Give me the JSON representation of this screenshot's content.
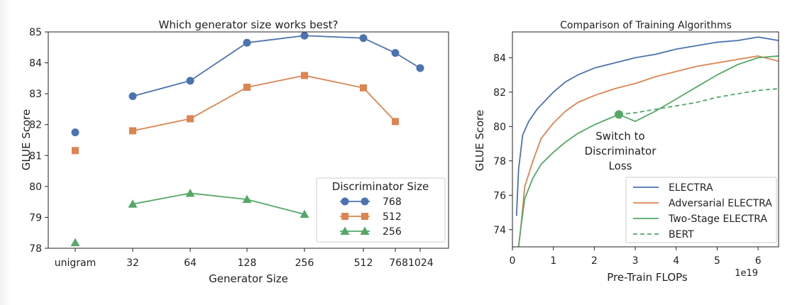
{
  "chart_data": [
    {
      "type": "line",
      "title": "Which generator size works best?",
      "xlabel": "Generator Size",
      "ylabel": "GLUE Score",
      "categories": [
        "unigram",
        "32",
        "64",
        "128",
        "256",
        "512",
        "768",
        "1024"
      ],
      "ylim": [
        78,
        85
      ],
      "yticks": [
        78,
        79,
        80,
        81,
        82,
        83,
        84,
        85
      ],
      "grid": false,
      "legend": {
        "title": "Discriminator Size",
        "placement": "lower-right"
      },
      "series": [
        {
          "name": "768",
          "color": "#4c72b0",
          "marker": "circle",
          "unigram": 81.75,
          "x": [
            "32",
            "64",
            "128",
            "256",
            "512",
            "768",
            "1024"
          ],
          "values": [
            82.92,
            83.42,
            84.65,
            84.88,
            84.8,
            84.32,
            83.83
          ]
        },
        {
          "name": "512",
          "color": "#dd8452",
          "marker": "square",
          "unigram": 81.16,
          "x": [
            "32",
            "64",
            "128",
            "256",
            "512",
            "768"
          ],
          "values": [
            81.8,
            82.19,
            83.21,
            83.59,
            83.19,
            82.1
          ]
        },
        {
          "name": "256",
          "color": "#55a868",
          "marker": "triangle",
          "unigram": 78.18,
          "x": [
            "32",
            "64",
            "128",
            "256"
          ],
          "values": [
            79.43,
            79.78,
            79.58,
            79.1
          ]
        }
      ]
    },
    {
      "type": "line",
      "title": "Comparison of Training Algorithms",
      "xlabel": "Pre-Train FLOPs",
      "ylabel": "GLUE Score",
      "x_multiplier_label": "1e19",
      "xlim": [
        0,
        6.5
      ],
      "ylim": [
        73,
        85.5
      ],
      "xticks": [
        0,
        1,
        2,
        3,
        4,
        5,
        6
      ],
      "yticks": [
        74,
        76,
        78,
        80,
        82,
        84
      ],
      "grid": false,
      "legend": {
        "placement": "lower-right"
      },
      "annotation": {
        "text": "Switch to Discriminator Loss",
        "lines": [
          "Switch to",
          "Discriminator",
          "Loss"
        ],
        "x": 2.6,
        "y": 80.7
      },
      "series": [
        {
          "name": "ELECTRA",
          "color": "#4c72b0",
          "style": "solid",
          "x": [
            0.1,
            0.15,
            0.25,
            0.4,
            0.6,
            0.8,
            1.0,
            1.3,
            1.6,
            2.0,
            2.5,
            3.0,
            3.5,
            4.0,
            4.5,
            5.0,
            5.5,
            6.0,
            6.5
          ],
          "y": [
            74.8,
            77.5,
            79.5,
            80.3,
            81.0,
            81.5,
            82.0,
            82.6,
            83.0,
            83.4,
            83.7,
            84.0,
            84.2,
            84.5,
            84.7,
            84.9,
            85.0,
            85.2,
            85.0
          ]
        },
        {
          "name": "Adversarial ELECTRA",
          "color": "#dd8452",
          "style": "solid",
          "x": [
            0.15,
            0.2,
            0.3,
            0.5,
            0.7,
            1.0,
            1.3,
            1.6,
            2.0,
            2.5,
            3.0,
            3.5,
            4.0,
            4.5,
            5.0,
            5.5,
            6.0,
            6.5
          ],
          "y": [
            73.0,
            74.0,
            76.5,
            78.0,
            79.3,
            80.2,
            80.9,
            81.4,
            81.8,
            82.2,
            82.5,
            82.9,
            83.2,
            83.5,
            83.7,
            83.9,
            84.1,
            83.8
          ]
        },
        {
          "name": "Two-Stage ELECTRA",
          "color": "#55a868",
          "style": "solid",
          "x": [
            0.15,
            0.2,
            0.3,
            0.5,
            0.7,
            1.0,
            1.3,
            1.6,
            2.0,
            2.3,
            2.6,
            3.0,
            3.5,
            4.0,
            4.5,
            5.0,
            5.5,
            6.0,
            6.5
          ],
          "y": [
            73.0,
            74.0,
            75.8,
            77.0,
            77.8,
            78.5,
            79.1,
            79.6,
            80.1,
            80.4,
            80.7,
            80.3,
            80.9,
            81.6,
            82.3,
            83.0,
            83.6,
            84.0,
            84.1
          ]
        },
        {
          "name": "BERT",
          "color": "#55a868",
          "style": "dashed",
          "x": [
            2.6,
            3.0,
            3.5,
            4.0,
            4.5,
            5.0,
            5.5,
            6.0,
            6.5
          ],
          "y": [
            80.7,
            80.8,
            81.0,
            81.2,
            81.4,
            81.7,
            81.9,
            82.1,
            82.2
          ]
        }
      ]
    }
  ]
}
